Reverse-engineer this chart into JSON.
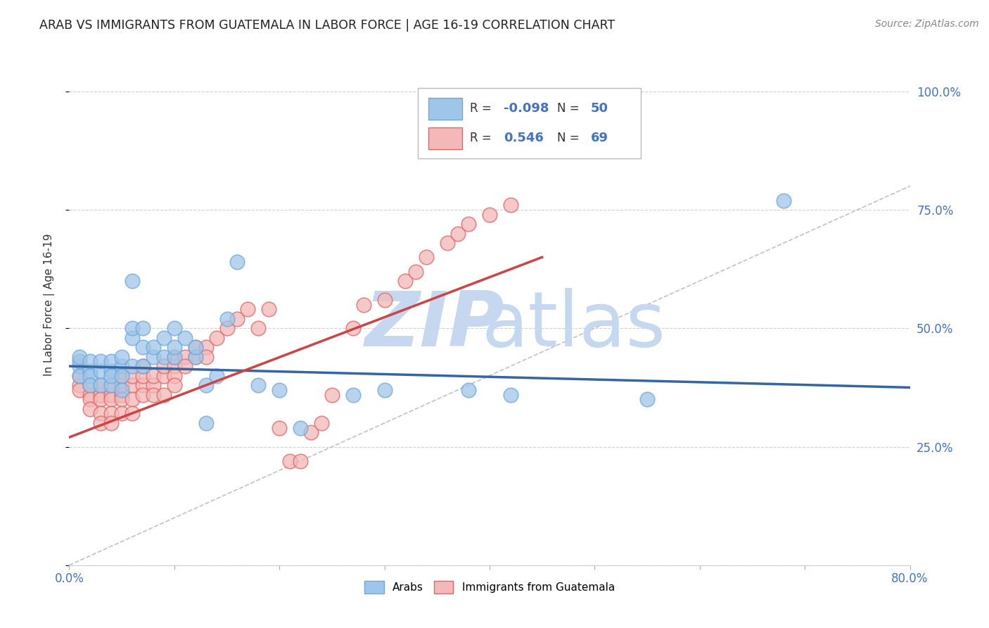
{
  "title": "ARAB VS IMMIGRANTS FROM GUATEMALA IN LABOR FORCE | AGE 16-19 CORRELATION CHART",
  "source": "Source: ZipAtlas.com",
  "ylabel": "In Labor Force | Age 16-19",
  "xlim": [
    0.0,
    0.8
  ],
  "ylim": [
    0.0,
    1.1
  ],
  "xticks": [
    0.0,
    0.1,
    0.2,
    0.3,
    0.4,
    0.5,
    0.6,
    0.7,
    0.8
  ],
  "xticklabels": [
    "0.0%",
    "",
    "",
    "",
    "",
    "",
    "",
    "",
    "80.0%"
  ],
  "yticks": [
    0.0,
    0.25,
    0.5,
    0.75,
    1.0
  ],
  "yticklabels_right": [
    "",
    "25.0%",
    "50.0%",
    "75.0%",
    "100.0%"
  ],
  "legend_r_arab": "-0.098",
  "legend_n_arab": "50",
  "legend_r_guatemala": "0.546",
  "legend_n_guatemala": "69",
  "arab_color": "#9fc5e8",
  "arab_edge_color": "#6fa8dc",
  "guatemala_color": "#f4b8b8",
  "guatemala_edge_color": "#e06666",
  "trendline_arab_color": "#3465a4",
  "trendline_guatemala_color": "#cc4444",
  "diagonal_color": "#bbbbbb",
  "watermark_zip_color": "#c5d8f0",
  "watermark_atlas_color": "#c5d8f0",
  "background_color": "#ffffff",
  "grid_color": "#cccccc",
  "arab_x": [
    0.01,
    0.01,
    0.01,
    0.01,
    0.02,
    0.02,
    0.02,
    0.02,
    0.03,
    0.03,
    0.03,
    0.04,
    0.04,
    0.04,
    0.04,
    0.05,
    0.05,
    0.05,
    0.05,
    0.06,
    0.06,
    0.06,
    0.06,
    0.07,
    0.07,
    0.07,
    0.08,
    0.08,
    0.09,
    0.09,
    0.1,
    0.1,
    0.1,
    0.11,
    0.12,
    0.12,
    0.13,
    0.13,
    0.14,
    0.15,
    0.16,
    0.18,
    0.2,
    0.22,
    0.27,
    0.3,
    0.38,
    0.42,
    0.55,
    0.68
  ],
  "arab_y": [
    0.42,
    0.43,
    0.44,
    0.4,
    0.41,
    0.43,
    0.4,
    0.38,
    0.41,
    0.43,
    0.38,
    0.41,
    0.43,
    0.38,
    0.4,
    0.42,
    0.44,
    0.4,
    0.37,
    0.42,
    0.48,
    0.5,
    0.6,
    0.42,
    0.46,
    0.5,
    0.44,
    0.46,
    0.44,
    0.48,
    0.44,
    0.46,
    0.5,
    0.48,
    0.44,
    0.46,
    0.3,
    0.38,
    0.4,
    0.52,
    0.64,
    0.38,
    0.37,
    0.29,
    0.36,
    0.37,
    0.37,
    0.36,
    0.35,
    0.77
  ],
  "guatemala_x": [
    0.01,
    0.01,
    0.01,
    0.02,
    0.02,
    0.02,
    0.02,
    0.03,
    0.03,
    0.03,
    0.03,
    0.03,
    0.04,
    0.04,
    0.04,
    0.04,
    0.04,
    0.05,
    0.05,
    0.05,
    0.05,
    0.05,
    0.06,
    0.06,
    0.06,
    0.06,
    0.07,
    0.07,
    0.07,
    0.07,
    0.08,
    0.08,
    0.08,
    0.09,
    0.09,
    0.09,
    0.1,
    0.1,
    0.1,
    0.1,
    0.11,
    0.11,
    0.12,
    0.12,
    0.13,
    0.13,
    0.14,
    0.15,
    0.16,
    0.17,
    0.18,
    0.19,
    0.2,
    0.21,
    0.22,
    0.23,
    0.24,
    0.25,
    0.27,
    0.28,
    0.3,
    0.32,
    0.33,
    0.34,
    0.36,
    0.37,
    0.38,
    0.4,
    0.42
  ],
  "guatemala_y": [
    0.38,
    0.4,
    0.37,
    0.36,
    0.38,
    0.35,
    0.33,
    0.36,
    0.38,
    0.35,
    0.32,
    0.3,
    0.36,
    0.38,
    0.35,
    0.32,
    0.3,
    0.36,
    0.38,
    0.4,
    0.35,
    0.32,
    0.38,
    0.4,
    0.35,
    0.32,
    0.38,
    0.4,
    0.42,
    0.36,
    0.38,
    0.4,
    0.36,
    0.4,
    0.42,
    0.36,
    0.42,
    0.44,
    0.4,
    0.38,
    0.44,
    0.42,
    0.44,
    0.46,
    0.46,
    0.44,
    0.48,
    0.5,
    0.52,
    0.54,
    0.5,
    0.54,
    0.29,
    0.22,
    0.22,
    0.28,
    0.3,
    0.36,
    0.5,
    0.55,
    0.56,
    0.6,
    0.62,
    0.65,
    0.68,
    0.7,
    0.72,
    0.74,
    0.76
  ],
  "arab_trend_x": [
    0.0,
    0.8
  ],
  "arab_trend_y_start": 0.42,
  "arab_trend_y_end": 0.375,
  "guat_trend_x": [
    0.0,
    0.45
  ],
  "guat_trend_y_start": 0.27,
  "guat_trend_y_end": 0.65
}
